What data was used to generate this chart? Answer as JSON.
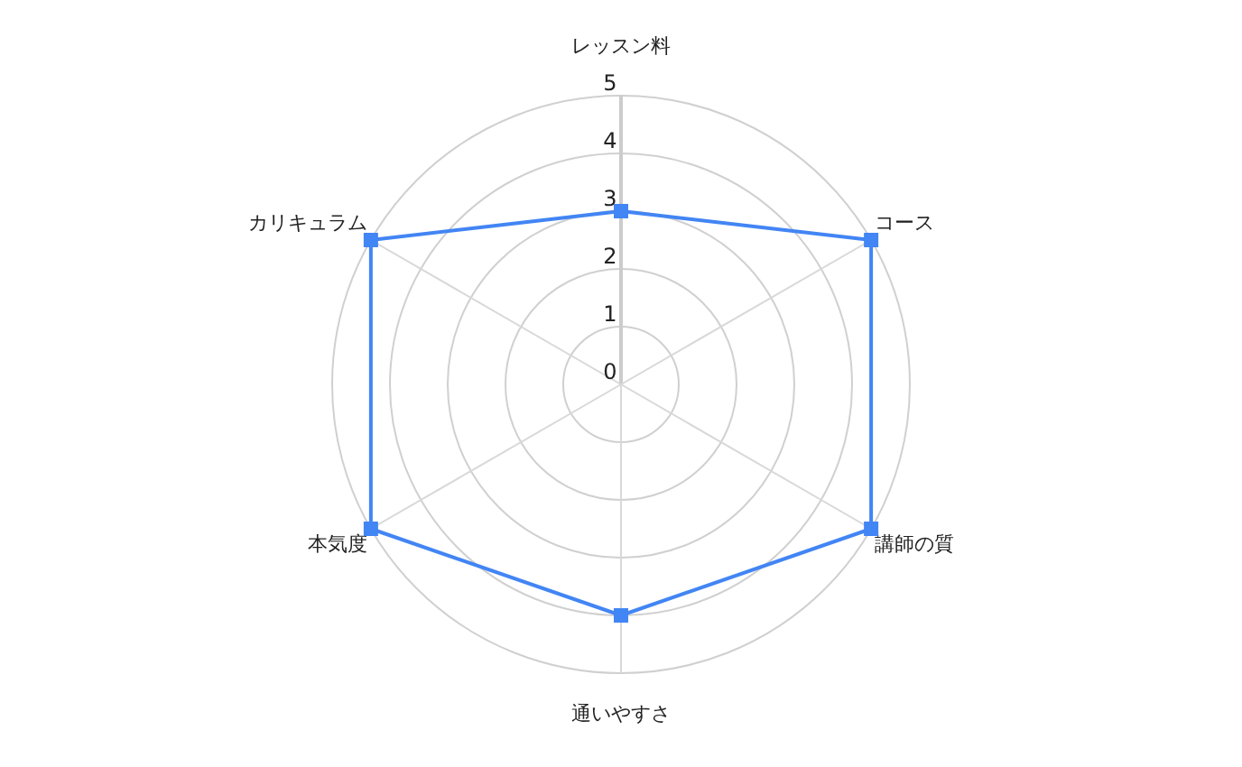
{
  "chart_data": {
    "type": "radar",
    "categories": [
      "レッスン料",
      "コース",
      "講師の質",
      "通いやすさ",
      "本気度",
      "カリキュラム"
    ],
    "series": [
      {
        "color": "#4285f4",
        "values": [
          3,
          5,
          5,
          4,
          5,
          5
        ]
      }
    ],
    "ylim": [
      0,
      5
    ],
    "yticks": [
      0,
      1,
      2,
      3,
      4,
      5
    ],
    "grid": true,
    "marker": "square"
  }
}
